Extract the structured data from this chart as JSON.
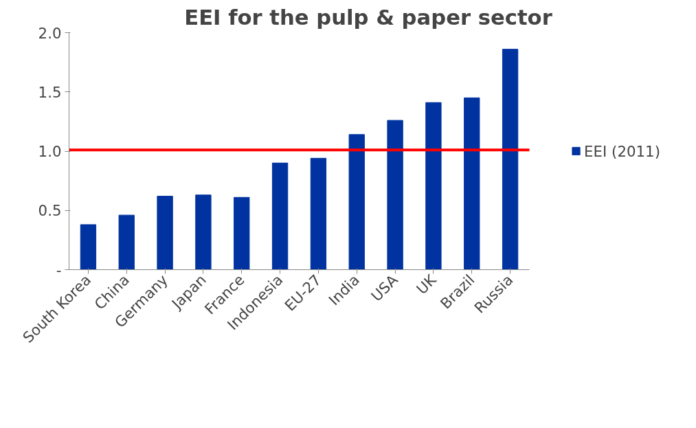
{
  "chart_data": {
    "type": "bar",
    "title": "EEI for the pulp & paper sector",
    "categories": [
      "South Korea",
      "China",
      "Germany",
      "Japan",
      "France",
      "Indonesia",
      "EU-27",
      "India",
      "USA",
      "UK",
      "Brazil",
      "Russia"
    ],
    "series": [
      {
        "name": "EEI (2011)",
        "color": "#0033a0",
        "values": [
          0.38,
          0.46,
          0.62,
          0.63,
          0.61,
          0.9,
          0.94,
          1.14,
          1.26,
          1.41,
          1.45,
          1.86
        ]
      }
    ],
    "ylim": [
      0,
      2
    ],
    "yticks": [
      {
        "value": 0,
        "label": "-"
      },
      {
        "value": 0.5,
        "label": "0.5"
      },
      {
        "value": 1,
        "label": "1.0"
      },
      {
        "value": 1.5,
        "label": "1.5"
      },
      {
        "value": 2,
        "label": "2.0"
      }
    ],
    "ref_lines": [
      {
        "axis": "y",
        "value": 1.01,
        "color": "#ff0000"
      }
    ],
    "grid": false,
    "legend": "right"
  }
}
